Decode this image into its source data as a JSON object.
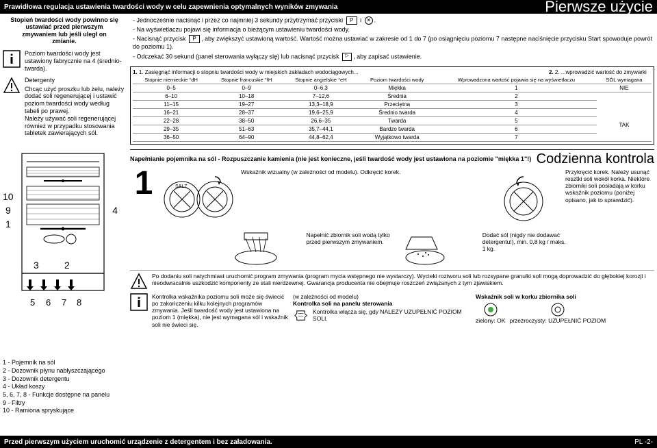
{
  "header": {
    "left": "Prawidłowa regulacja ustawienia twardości wody w celu zapewnienia optymalnych wyników zmywania",
    "right": "Pierwsze użycie"
  },
  "left": {
    "topnote": "Stopień twardości wody powinno się ustawiać przed pierwszym zmywaniem lub jeśli uległ on zmianie.",
    "info": "Poziom twardości wody jest ustawiony fabrycznie na 4 (średnio-twarda).",
    "det_h": "Detergenty",
    "det": "Chcąc użyć proszku lub żelu, należy dodać soli regenerującej i ustawić poziom twardości wody według tabeli po prawej.\nNależy używać soli regenerującej również w przypadku stosowania tabletek zawierających sól.",
    "parts": "1 - Pojemnik na sól\n2 - Dozownik płynu nabłyszczającego\n3 - Dozownik detergentu\n4 - Układ koszy\n5, 6, 7, 8 - Funkcje dostępne na panelu\n9 - Filtry\n10 - Ramiona spryskujące"
  },
  "right": {
    "i1": "- Jednocześnie nacisnąć i przez co najmniej 3 sekundy przytrzymać przyciski",
    "i1b": "i",
    "i1c": ".",
    "i2": "- Na wyświetlaczu pojawi się informacja o bieżącym ustawieniu twardości wody.",
    "i3": "- Nacisnąć przycisk",
    "i3b": ", aby zwiększyć ustawioną wartość. Wartość można ustawiać w zakresie od 1 do 7 (po osiągnięciu poziomu 7 następne naciśnięcie przycisku Start spowoduje powrót do poziomu 1).",
    "i4": "- Odczekać 30 sekund (panel sterowania wyłączy się) lub nacisnąć przycisk",
    "i4b": ", aby zapisać ustawienie.",
    "tbl_h1": "1. Zasięgnąć informacji o stopniu twardości wody w miejskich zakładach wodociągowych...",
    "tbl_h2": "2. ...wprowadzić wartość do zmywarki",
    "cols": [
      "Stopnie niemieckie °dH",
      "Stopnie francuskie °fH",
      "Stopnie angielskie °eH",
      "Poziom twardości wody",
      "Wprowadzona wartość pojawia się na wyświetlaczu",
      "SÓL wymagana"
    ],
    "rows": [
      [
        "0–5",
        "0–9",
        "0–6,3",
        "Miękka",
        "1",
        "NIE"
      ],
      [
        "6–10",
        "10–18",
        "7–12,6",
        "Średnia",
        "2",
        ""
      ],
      [
        "11–15",
        "19–27",
        "13,3–18,9",
        "Przeciętna",
        "3",
        ""
      ],
      [
        "16–21",
        "28–37",
        "19,6–25,9",
        "Średnio twarda",
        "4",
        "TAK"
      ],
      [
        "22–28",
        "38–50",
        "26,6–35",
        "Twarda",
        "5",
        ""
      ],
      [
        "29–35",
        "51–63",
        "35,7–44,1",
        "Bardzo twarda",
        "6",
        ""
      ],
      [
        "36–50",
        "64–90",
        "44,8–62,4",
        "Wyjątkowo twarda",
        "7",
        ""
      ]
    ],
    "sec2_t": "Napełnianie pojemnika na sól - Rozpuszczanie kamienia (nie jest konieczne, jeśli twardość wody jest ustawiona na poziomie \"miękka 1\"!)",
    "sec2_r": "Codzienna kontrola",
    "salt1": "Wskaźnik wizualny (w zależności od modelu). Odkręcić korek.",
    "salt_r": "Przykręcić korek. Należy usunąć resztki soli wokół korka. Niektóre zbiorniki soli posiadają w korku wskaźnik poziomu (poniżej opisano, jak to sprawdzić).",
    "fill1": "Napełnić zbiornik soli wodą tylko przed pierwszym zmywaniem.",
    "fill2": "Dodać sól (nigdy nie dodawać detergentu!), min. 0,8 kg / maks. 1 kg.",
    "warn": "Po dodaniu soli natychmiast uruchomić program zmywania (program mycia wstępnego nie wystarczy). Wycieki roztworu soli lub rozsypane granulki soli mogą doprowadzić do głębokiej korozji i nieodwracalnie uszkodzić komponenty ze stali nierdzewnej. Gwarancja producenta nie obejmuje roszczeń związanych z tym zjawiskiem.",
    "ind1": "Kontrolka wskaźnika poziomu soli może się świecić po zakończeniu kilku kolejnych programów zmywania. Jeśli twardość wody jest ustawiona na poziom 1 (miękka), nie jest wymagana sól i wskaźnik soli nie świeci się.",
    "ind2h": "(w zależności od modelu)",
    "ind2t": "Kontrolka soli na panelu sterowania",
    "ind2d": "Kontrolka włącza się, gdy NALEŻY UZUPEŁNIĆ POZIOM SOLI.",
    "ind3t": "Wskaźnik soli w korku zbiornika soli",
    "ind3a": "zielony: OK",
    "ind3b": "przezroczysty: UZUPEŁNIĆ POZIOM"
  },
  "footer": {
    "left": "Przed pierwszym użyciem uruchomić urządzenie z detergentem i bez załadowania.",
    "right": "PL -2-"
  }
}
